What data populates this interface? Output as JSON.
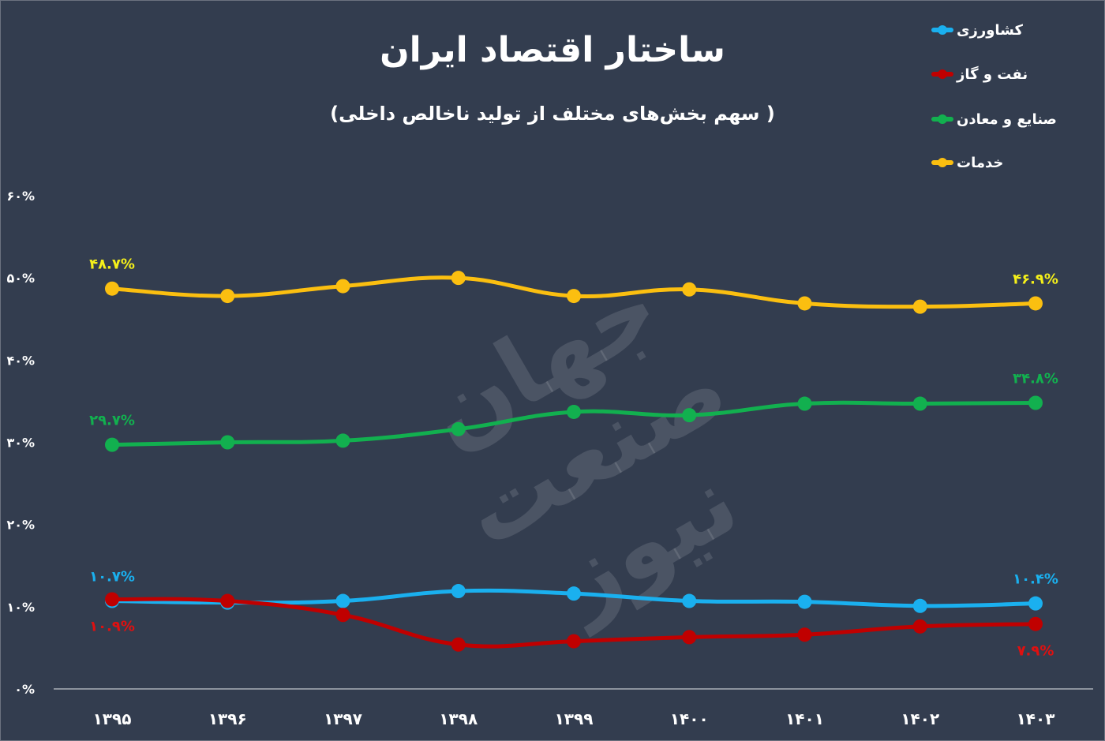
{
  "chart_data": {
    "type": "line",
    "title": "ساختار اقتصاد ایران",
    "subtitle": "( سهم بخش‌های مختلف از تولید ناخالص داخلی)",
    "categories": [
      "۱۳۹۵",
      "۱۳۹۶",
      "۱۳۹۷",
      "۱۳۹۸",
      "۱۳۹۹",
      "۱۴۰۰",
      "۱۴۰۱",
      "۱۴۰۲",
      "۱۴۰۳"
    ],
    "ylim": [
      0,
      60
    ],
    "yticks": [
      0,
      10,
      20,
      30,
      40,
      50,
      60
    ],
    "ytick_labels": [
      "۰%",
      "۱۰%",
      "۲۰%",
      "۳۰%",
      "۴۰%",
      "۵۰%",
      "۶۰%"
    ],
    "grid": false,
    "legend_position": "top-right",
    "series": [
      {
        "name": "کشاورزی",
        "color": "#1ab0ef",
        "values": [
          10.7,
          10.5,
          10.7,
          11.9,
          11.6,
          10.7,
          10.6,
          10.1,
          10.4
        ],
        "labels": [
          {
            "index": 0,
            "text": "۱۰.۷%",
            "pos": "above"
          },
          {
            "index": 8,
            "text": "۱۰.۴%",
            "pos": "above"
          }
        ]
      },
      {
        "name": "نفت و گاز",
        "color": "#c00000",
        "values": [
          10.9,
          10.7,
          9.0,
          5.4,
          5.8,
          6.3,
          6.6,
          7.6,
          7.9
        ],
        "labels": [
          {
            "index": 0,
            "text": "۱۰.۹%",
            "pos": "below"
          },
          {
            "index": 8,
            "text": "۷.۹%",
            "pos": "below"
          }
        ]
      },
      {
        "name": "صنایع و معادن",
        "color": "#12b04f",
        "values": [
          29.7,
          30.0,
          30.2,
          31.6,
          33.7,
          33.3,
          34.7,
          34.7,
          34.8
        ],
        "labels": [
          {
            "index": 0,
            "text": "۲۹.۷%",
            "pos": "above"
          },
          {
            "index": 8,
            "text": "۳۴.۸%",
            "pos": "above"
          }
        ]
      },
      {
        "name": "خدمات",
        "color": "#fbbf10",
        "values": [
          48.7,
          47.8,
          49.0,
          50.0,
          47.8,
          48.6,
          46.9,
          46.5,
          46.9
        ],
        "labels": [
          {
            "index": 0,
            "text": "۴۸.۷%",
            "pos": "above"
          },
          {
            "index": 8,
            "text": "۴۶.۹%",
            "pos": "above"
          }
        ]
      }
    ],
    "label_colors": {
      "کشاورزی": "#1ab0ef",
      "نفت و گاز": "#e01010",
      "صنایع و معادن": "#12b04f",
      "خدمات": "#f5f01a"
    }
  },
  "watermark": "جهان صنعت نیوز"
}
